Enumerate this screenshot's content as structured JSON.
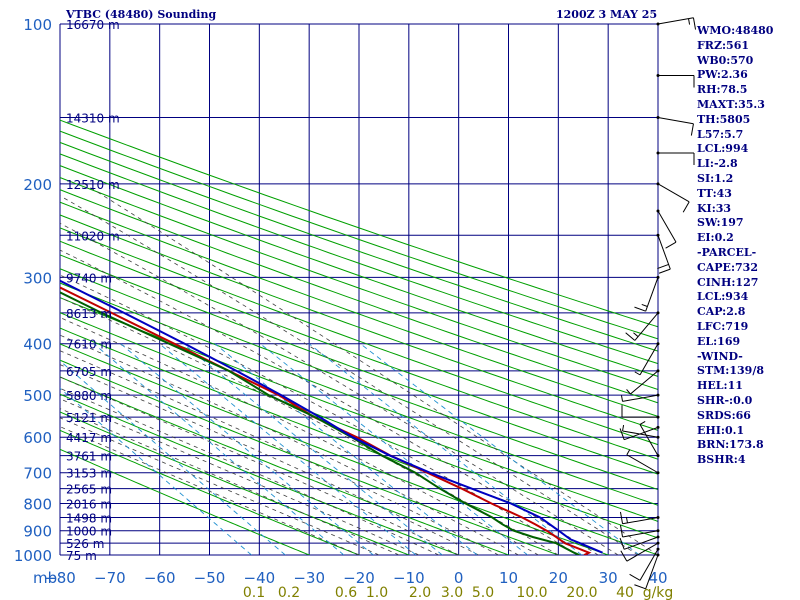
{
  "header": {
    "station": "VTBC (48480) Sounding",
    "time": "1200Z  3 MAY 25"
  },
  "indices": [
    "WMO:48480",
    "FRZ:561",
    "WB0:570",
    "PW:2.36",
    "RH:78.5",
    "MAXT:35.3",
    "TH:5805",
    "L57:5.7",
    "LCL:994",
    "LI:-2.8",
    "SI:1.2",
    "TT:43",
    "KI:33",
    "SW:197",
    "EI:0.2",
    "-PARCEL-",
    "CAPE:732",
    "CINH:127",
    "LCL:934",
    "CAP:2.8",
    "LFC:719",
    "EL:169",
    "-WIND-",
    "STM:139/8",
    "HEL:11",
    "SHR-:0.0",
    "SRDS:66",
    "EHI:0.1",
    "BRN:173.8",
    "BSHR:4"
  ],
  "colors": {
    "grid": "#000080",
    "dry_adiabat": "#00a000",
    "moist_adiabat": "#404040",
    "mixing_ratio": "#2090d0",
    "temperature": "#c00000",
    "dewpoint": "#006000",
    "parcel": "#0000c0",
    "pressure_labels": "#2060c0",
    "height_labels": "#000080",
    "mixing_labels": "#808000",
    "wind_barbs": "#000000"
  },
  "chart_data": {
    "type": "line",
    "title": "VTBC (48480) Sounding",
    "pressure_axis": {
      "unit_label": "mb",
      "scale": "log",
      "range": [
        100,
        1000
      ],
      "ticks": [
        100,
        200,
        300,
        400,
        500,
        600,
        700,
        800,
        900,
        1000
      ]
    },
    "temperature_axis": {
      "range": [
        -80,
        40
      ],
      "ticks": [
        -80,
        -70,
        -60,
        -50,
        -40,
        -30,
        -20,
        -10,
        0,
        10,
        20,
        30,
        40
      ]
    },
    "height_labels": [
      {
        "p": 100,
        "label": "16670 m"
      },
      {
        "p": 150,
        "label": "14310 m"
      },
      {
        "p": 200,
        "label": "12510 m"
      },
      {
        "p": 250,
        "label": "11020 m"
      },
      {
        "p": 300,
        "label": "9740 m"
      },
      {
        "p": 350,
        "label": "8613 m"
      },
      {
        "p": 400,
        "label": "7610 m"
      },
      {
        "p": 450,
        "label": "6705 m"
      },
      {
        "p": 500,
        "label": "5880 m"
      },
      {
        "p": 550,
        "label": "5121 m"
      },
      {
        "p": 600,
        "label": "4417 m"
      },
      {
        "p": 650,
        "label": "3761 m"
      },
      {
        "p": 700,
        "label": "3153 m"
      },
      {
        "p": 750,
        "label": "2565 m"
      },
      {
        "p": 800,
        "label": "2016 m"
      },
      {
        "p": 850,
        "label": "1498 m"
      },
      {
        "p": 900,
        "label": "1000 m"
      },
      {
        "p": 950,
        "label": "526 m"
      },
      {
        "p": 1000,
        "label": "75 m"
      }
    ],
    "mixing_ratio_labels": [
      "0.1",
      "0.2",
      "0.6",
      "1.0",
      "2.0",
      "3.0",
      "5.0",
      "10.0",
      "20.0",
      "40",
      "g/kg"
    ],
    "series": [
      {
        "key": "temperature",
        "points": [
          [
            1000,
            25.2
          ],
          [
            990,
            26.6
          ],
          [
            950,
            23.6
          ],
          [
            925,
            23.0
          ],
          [
            900,
            22.3
          ],
          [
            875,
            21.2
          ],
          [
            850,
            19.9
          ],
          [
            800,
            16.4
          ],
          [
            750,
            13.3
          ],
          [
            700,
            9.4
          ],
          [
            650,
            5.3
          ],
          [
            600,
            2.0
          ],
          [
            550,
            -2.7
          ],
          [
            500,
            -5.6
          ],
          [
            450,
            -11.0
          ],
          [
            400,
            -16.8
          ],
          [
            350,
            -23.5
          ],
          [
            300,
            -31.2
          ],
          [
            250,
            -41.2
          ],
          [
            200,
            -52.5
          ],
          [
            150,
            -66.2
          ],
          [
            130,
            -72.1
          ],
          [
            120,
            -74.8
          ],
          [
            110,
            -78.1
          ],
          [
            100,
            -80.0
          ]
        ]
      },
      {
        "key": "dewpoint",
        "points": [
          [
            1000,
            24.2
          ],
          [
            990,
            23.6
          ],
          [
            950,
            21.8
          ],
          [
            925,
            18.3
          ],
          [
            900,
            15.7
          ],
          [
            875,
            14.6
          ],
          [
            850,
            13.9
          ],
          [
            800,
            11.2
          ],
          [
            750,
            8.9
          ],
          [
            700,
            7.0
          ],
          [
            650,
            3.6
          ],
          [
            600,
            1.0
          ],
          [
            550,
            -2.5
          ],
          [
            500,
            -7.6
          ],
          [
            450,
            -11.0
          ],
          [
            400,
            -17.8
          ],
          [
            350,
            -25.5
          ],
          [
            300,
            -33.2
          ],
          [
            250,
            -43.2
          ],
          [
            200,
            -56.5
          ],
          [
            150,
            -70.2
          ]
        ]
      },
      {
        "key": "parcel",
        "points": [
          [
            990,
            29.3
          ],
          [
            950,
            26.6
          ],
          [
            934,
            25.4
          ],
          [
            900,
            24.7
          ],
          [
            850,
            23.5
          ],
          [
            800,
            20.3
          ],
          [
            750,
            15.3
          ],
          [
            700,
            9.9
          ],
          [
            650,
            5.2
          ],
          [
            600,
            1.2
          ],
          [
            550,
            -1.6
          ],
          [
            500,
            -5.1
          ],
          [
            450,
            -9.5
          ],
          [
            400,
            -14.7
          ],
          [
            350,
            -21.0
          ],
          [
            300,
            -28.4
          ],
          [
            250,
            -37.6
          ],
          [
            200,
            -49.3
          ],
          [
            169,
            -57.5
          ],
          [
            150,
            -63.5
          ],
          [
            130,
            -68.2
          ],
          [
            120,
            -71.3
          ],
          [
            110,
            -74.6
          ],
          [
            100,
            -79.0
          ]
        ]
      }
    ],
    "wind": [
      {
        "p": 1000,
        "dir": 200,
        "spd": 10
      },
      {
        "p": 975,
        "dir": 210,
        "spd": 10
      },
      {
        "p": 950,
        "dir": 240,
        "spd": 10
      },
      {
        "p": 925,
        "dir": 250,
        "spd": 10
      },
      {
        "p": 900,
        "dir": 260,
        "spd": 10
      },
      {
        "p": 850,
        "dir": 260,
        "spd": 15
      },
      {
        "p": 700,
        "dir": 300,
        "spd": 5
      },
      {
        "p": 650,
        "dir": 330,
        "spd": 5
      },
      {
        "p": 600,
        "dir": 280,
        "spd": 5
      },
      {
        "p": 575,
        "dir": 250,
        "spd": 10
      },
      {
        "p": 550,
        "dir": 270,
        "spd": 10
      },
      {
        "p": 500,
        "dir": 260,
        "spd": 5
      },
      {
        "p": 450,
        "dir": 230,
        "spd": 5
      },
      {
        "p": 400,
        "dir": 210,
        "spd": 5
      },
      {
        "p": 350,
        "dir": 220,
        "spd": 15
      },
      {
        "p": 300,
        "dir": 200,
        "spd": 15
      },
      {
        "p": 250,
        "dir": 160,
        "spd": 20
      },
      {
        "p": 225,
        "dir": 150,
        "spd": 10
      },
      {
        "p": 200,
        "dir": 120,
        "spd": 10
      },
      {
        "p": 175,
        "dir": 90,
        "spd": 10
      },
      {
        "p": 150,
        "dir": 100,
        "spd": 10
      },
      {
        "p": 125,
        "dir": 90,
        "spd": 10
      },
      {
        "p": 100,
        "dir": 80,
        "spd": 15
      }
    ]
  }
}
